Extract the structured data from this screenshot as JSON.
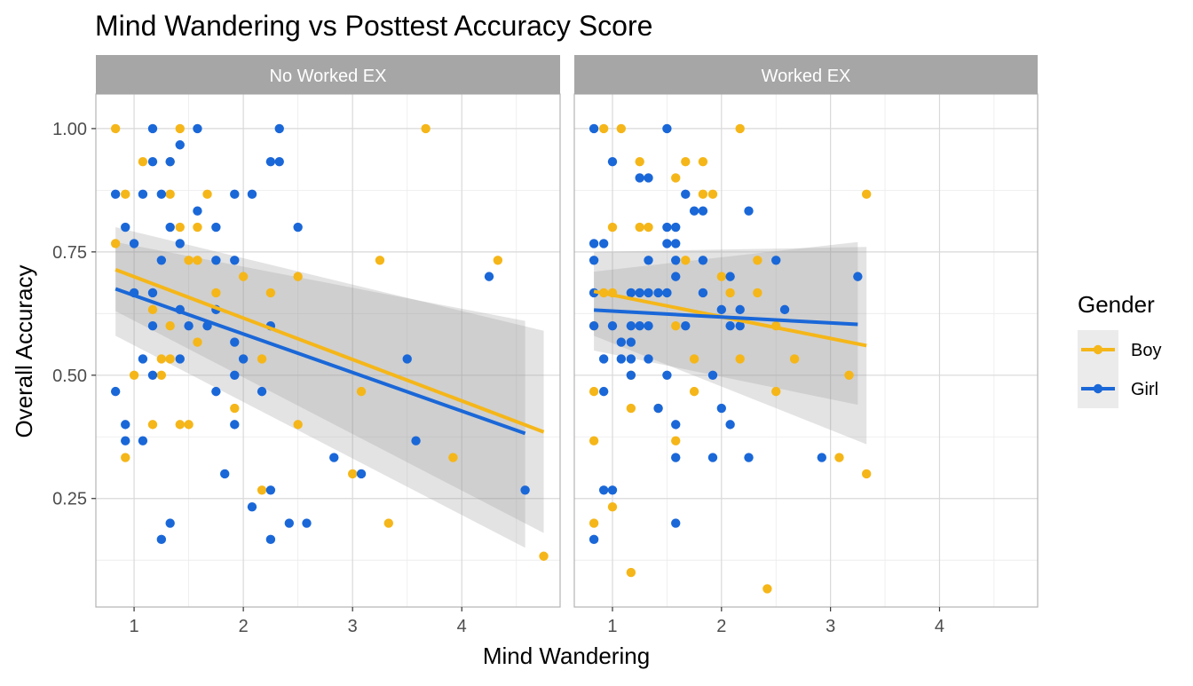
{
  "chart_data": {
    "type": "scatter",
    "title": "Mind Wandering vs Posttest Accuracy Score",
    "xlabel": "Mind Wandering",
    "ylabel": "Overall Accuracy",
    "xlim": [
      0.65,
      4.9
    ],
    "ylim": [
      0.03,
      1.07
    ],
    "x_ticks": [
      1,
      2,
      3,
      4
    ],
    "x_tick_labels": [
      "1",
      "2",
      "3",
      "4"
    ],
    "y_ticks": [
      0.25,
      0.5,
      0.75,
      1.0
    ],
    "y_tick_labels": [
      "0.25",
      "0.50",
      "0.75",
      "1.00"
    ],
    "grid": true,
    "legend": {
      "title": "Gender",
      "position": "right",
      "entries": [
        {
          "label": "Boy",
          "color": "#F5B619"
        },
        {
          "label": "Girl",
          "color": "#1A67D8"
        }
      ]
    },
    "panels": [
      {
        "label": "No Worked EX",
        "series": [
          {
            "name": "Boy",
            "color": "#F5B619",
            "points": [
              [
                0.83,
                1.0
              ],
              [
                0.83,
                0.767
              ],
              [
                0.92,
                0.867
              ],
              [
                0.92,
                0.333
              ],
              [
                1.0,
                0.5
              ],
              [
                1.08,
                0.933
              ],
              [
                1.17,
                0.633
              ],
              [
                1.17,
                0.4
              ],
              [
                1.25,
                0.5
              ],
              [
                1.25,
                0.533
              ],
              [
                1.33,
                0.933
              ],
              [
                1.33,
                0.867
              ],
              [
                1.33,
                0.6
              ],
              [
                1.33,
                0.533
              ],
              [
                1.42,
                1.0
              ],
              [
                1.42,
                0.8
              ],
              [
                1.42,
                0.4
              ],
              [
                1.5,
                0.733
              ],
              [
                1.5,
                0.4
              ],
              [
                1.58,
                0.8
              ],
              [
                1.58,
                0.733
              ],
              [
                1.58,
                0.567
              ],
              [
                1.67,
                0.867
              ],
              [
                1.75,
                0.667
              ],
              [
                1.92,
                0.433
              ],
              [
                2.0,
                0.7
              ],
              [
                2.17,
                0.533
              ],
              [
                2.17,
                0.267
              ],
              [
                2.25,
                0.667
              ],
              [
                2.5,
                0.7
              ],
              [
                2.5,
                0.4
              ],
              [
                3.0,
                0.3
              ],
              [
                3.08,
                0.467
              ],
              [
                3.25,
                0.733
              ],
              [
                3.33,
                0.2
              ],
              [
                3.67,
                1.0
              ],
              [
                3.92,
                0.333
              ],
              [
                4.33,
                0.733
              ],
              [
                4.75,
                0.133
              ]
            ],
            "trend": {
              "x": [
                0.83,
                4.75
              ],
              "y": [
                0.714,
                0.385
              ],
              "ci_start": [
                0.63,
                0.8
              ],
              "ci_end": [
                0.18,
                0.59
              ]
            }
          },
          {
            "name": "Girl",
            "color": "#1A67D8",
            "points": [
              [
                0.83,
                0.867
              ],
              [
                0.83,
                0.467
              ],
              [
                0.92,
                0.8
              ],
              [
                0.92,
                0.4
              ],
              [
                0.92,
                0.367
              ],
              [
                1.0,
                0.767
              ],
              [
                1.0,
                0.667
              ],
              [
                1.08,
                0.867
              ],
              [
                1.08,
                0.533
              ],
              [
                1.08,
                0.367
              ],
              [
                1.17,
                1.0
              ],
              [
                1.17,
                0.933
              ],
              [
                1.17,
                0.667
              ],
              [
                1.17,
                0.6
              ],
              [
                1.17,
                0.5
              ],
              [
                1.25,
                0.867
              ],
              [
                1.25,
                0.733
              ],
              [
                1.25,
                0.167
              ],
              [
                1.33,
                0.933
              ],
              [
                1.33,
                0.8
              ],
              [
                1.33,
                0.2
              ],
              [
                1.42,
                0.967
              ],
              [
                1.42,
                0.767
              ],
              [
                1.42,
                0.633
              ],
              [
                1.42,
                0.533
              ],
              [
                1.5,
                0.6
              ],
              [
                1.58,
                1.0
              ],
              [
                1.58,
                0.833
              ],
              [
                1.67,
                0.6
              ],
              [
                1.75,
                0.8
              ],
              [
                1.75,
                0.733
              ],
              [
                1.75,
                0.633
              ],
              [
                1.75,
                0.467
              ],
              [
                1.83,
                0.3
              ],
              [
                1.92,
                0.867
              ],
              [
                1.92,
                0.733
              ],
              [
                1.92,
                0.567
              ],
              [
                1.92,
                0.5
              ],
              [
                1.92,
                0.4
              ],
              [
                2.0,
                0.533
              ],
              [
                2.08,
                0.867
              ],
              [
                2.08,
                0.233
              ],
              [
                2.17,
                0.467
              ],
              [
                2.25,
                0.933
              ],
              [
                2.25,
                0.6
              ],
              [
                2.25,
                0.267
              ],
              [
                2.25,
                0.167
              ],
              [
                2.33,
                1.0
              ],
              [
                2.33,
                0.933
              ],
              [
                2.42,
                0.2
              ],
              [
                2.5,
                0.8
              ],
              [
                2.58,
                0.2
              ],
              [
                2.83,
                0.333
              ],
              [
                3.08,
                0.3
              ],
              [
                3.5,
                0.533
              ],
              [
                3.58,
                0.367
              ],
              [
                4.25,
                0.7
              ],
              [
                4.58,
                0.267
              ]
            ],
            "trend": {
              "x": [
                0.83,
                4.58
              ],
              "y": [
                0.675,
                0.382
              ],
              "ci_start": [
                0.58,
                0.77
              ],
              "ci_end": [
                0.15,
                0.61
              ]
            }
          }
        ]
      },
      {
        "label": "Worked EX",
        "series": [
          {
            "name": "Boy",
            "color": "#F5B619",
            "points": [
              [
                0.83,
                0.6
              ],
              [
                0.83,
                0.467
              ],
              [
                0.83,
                0.367
              ],
              [
                0.83,
                0.2
              ],
              [
                0.92,
                1.0
              ],
              [
                0.92,
                0.667
              ],
              [
                1.0,
                0.8
              ],
              [
                1.0,
                0.667
              ],
              [
                1.0,
                0.233
              ],
              [
                1.08,
                1.0
              ],
              [
                1.17,
                0.5
              ],
              [
                1.17,
                0.433
              ],
              [
                1.17,
                0.1
              ],
              [
                1.25,
                0.933
              ],
              [
                1.25,
                0.8
              ],
              [
                1.33,
                0.8
              ],
              [
                1.42,
                0.433
              ],
              [
                1.58,
                0.9
              ],
              [
                1.58,
                0.6
              ],
              [
                1.58,
                0.367
              ],
              [
                1.67,
                0.933
              ],
              [
                1.67,
                0.733
              ],
              [
                1.75,
                0.533
              ],
              [
                1.75,
                0.467
              ],
              [
                1.83,
                0.933
              ],
              [
                1.83,
                0.867
              ],
              [
                1.92,
                0.867
              ],
              [
                2.0,
                0.7
              ],
              [
                2.08,
                0.667
              ],
              [
                2.17,
                1.0
              ],
              [
                2.17,
                0.533
              ],
              [
                2.33,
                0.733
              ],
              [
                2.33,
                0.667
              ],
              [
                2.42,
                0.067
              ],
              [
                2.5,
                0.6
              ],
              [
                2.5,
                0.467
              ],
              [
                2.67,
                0.533
              ],
              [
                3.08,
                0.333
              ],
              [
                3.17,
                0.5
              ],
              [
                3.33,
                0.867
              ],
              [
                3.33,
                0.3
              ]
            ],
            "trend": {
              "x": [
                0.83,
                3.33
              ],
              "y": [
                0.67,
                0.56
              ],
              "ci_start": [
                0.58,
                0.75
              ],
              "ci_end": [
                0.36,
                0.76
              ]
            }
          },
          {
            "name": "Girl",
            "color": "#1A67D8",
            "points": [
              [
                0.83,
                1.0
              ],
              [
                0.83,
                0.767
              ],
              [
                0.83,
                0.733
              ],
              [
                0.83,
                0.667
              ],
              [
                0.83,
                0.6
              ],
              [
                0.83,
                0.167
              ],
              [
                0.92,
                0.767
              ],
              [
                0.92,
                0.533
              ],
              [
                0.92,
                0.467
              ],
              [
                0.92,
                0.267
              ],
              [
                1.0,
                0.933
              ],
              [
                1.0,
                0.6
              ],
              [
                1.0,
                0.267
              ],
              [
                1.08,
                0.567
              ],
              [
                1.08,
                0.533
              ],
              [
                1.17,
                0.667
              ],
              [
                1.17,
                0.6
              ],
              [
                1.17,
                0.567
              ],
              [
                1.17,
                0.533
              ],
              [
                1.17,
                0.5
              ],
              [
                1.25,
                0.9
              ],
              [
                1.25,
                0.667
              ],
              [
                1.25,
                0.6
              ],
              [
                1.33,
                0.9
              ],
              [
                1.33,
                0.733
              ],
              [
                1.33,
                0.667
              ],
              [
                1.33,
                0.6
              ],
              [
                1.33,
                0.533
              ],
              [
                1.42,
                0.667
              ],
              [
                1.42,
                0.433
              ],
              [
                1.5,
                1.0
              ],
              [
                1.5,
                0.8
              ],
              [
                1.5,
                0.767
              ],
              [
                1.5,
                0.667
              ],
              [
                1.5,
                0.5
              ],
              [
                1.58,
                0.8
              ],
              [
                1.58,
                0.767
              ],
              [
                1.58,
                0.733
              ],
              [
                1.58,
                0.7
              ],
              [
                1.58,
                0.4
              ],
              [
                1.58,
                0.333
              ],
              [
                1.58,
                0.2
              ],
              [
                1.67,
                0.867
              ],
              [
                1.67,
                0.6
              ],
              [
                1.75,
                0.833
              ],
              [
                1.83,
                0.833
              ],
              [
                1.83,
                0.733
              ],
              [
                1.83,
                0.667
              ],
              [
                1.92,
                0.5
              ],
              [
                1.92,
                0.333
              ],
              [
                2.0,
                0.633
              ],
              [
                2.0,
                0.433
              ],
              [
                2.08,
                0.7
              ],
              [
                2.08,
                0.6
              ],
              [
                2.08,
                0.4
              ],
              [
                2.17,
                0.633
              ],
              [
                2.17,
                0.6
              ],
              [
                2.25,
                0.833
              ],
              [
                2.25,
                0.333
              ],
              [
                2.5,
                0.733
              ],
              [
                2.58,
                0.633
              ],
              [
                2.92,
                0.333
              ],
              [
                3.25,
                0.7
              ]
            ],
            "trend": {
              "x": [
                0.83,
                3.25
              ],
              "y": [
                0.632,
                0.603
              ],
              "ci_start": [
                0.55,
                0.71
              ],
              "ci_end": [
                0.44,
                0.77
              ]
            }
          }
        ]
      }
    ]
  }
}
